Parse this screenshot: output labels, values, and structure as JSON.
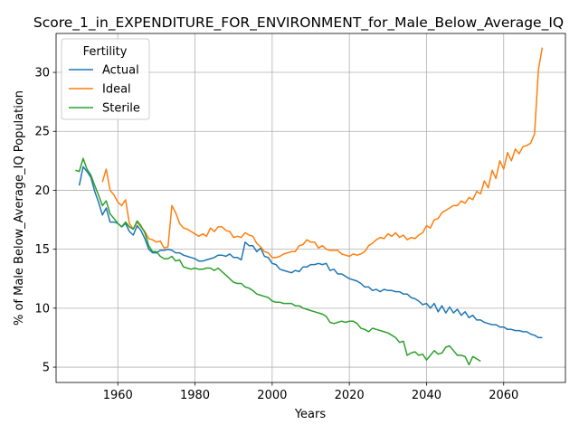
{
  "chart_data": {
    "type": "line",
    "title": "Score_1_in_EXPENDITURE_FOR_ENVIRONMENT_for_Male_Below_Average_IQ",
    "xlabel": "Years",
    "ylabel": "% of Male Below_Average_IQ Population",
    "xlim": [
      1944,
      2076
    ],
    "ylim": [
      3.7,
      33.3
    ],
    "xticks": [
      1960,
      1980,
      2000,
      2020,
      2040,
      2060
    ],
    "yticks": [
      5,
      10,
      15,
      20,
      25,
      30
    ],
    "grid": true,
    "legend": {
      "title": "Fertility",
      "placement": "top-left"
    },
    "series": [
      {
        "name": "Actual",
        "color": "#1f77b4",
        "x": [
          1950,
          1951,
          1952,
          1953,
          1954,
          1955,
          1956,
          1957,
          1958,
          1959,
          1960,
          1961,
          1962,
          1963,
          1964,
          1965,
          1966,
          1967,
          1968,
          1969,
          1970,
          1971,
          1972,
          1973,
          1974,
          1975,
          1976,
          1977,
          1978,
          1979,
          1980,
          1981,
          1982,
          1983,
          1984,
          1985,
          1986,
          1987,
          1988,
          1989,
          1990,
          1991,
          1992,
          1993,
          1994,
          1995,
          1996,
          1997,
          1998,
          1999,
          2000,
          2001,
          2002,
          2003,
          2004,
          2005,
          2006,
          2007,
          2008,
          2009,
          2010,
          2011,
          2012,
          2013,
          2014,
          2015,
          2016,
          2017,
          2018,
          2019,
          2020,
          2021,
          2022,
          2023,
          2024,
          2025,
          2026,
          2027,
          2028,
          2029,
          2030,
          2031,
          2032,
          2033,
          2034,
          2035,
          2036,
          2037,
          2038,
          2039,
          2040,
          2041,
          2042,
          2043,
          2044,
          2045,
          2046,
          2047,
          2048,
          2049,
          2050,
          2051,
          2052,
          2053,
          2054,
          2055,
          2056,
          2057,
          2058,
          2059,
          2060,
          2061,
          2062,
          2063,
          2064,
          2065,
          2066,
          2067,
          2068,
          2069,
          2070
        ],
        "values": [
          20.4,
          22.0,
          21.6,
          21.1,
          19.9,
          19.0,
          17.9,
          18.5,
          17.3,
          17.3,
          17.2,
          16.9,
          17.2,
          16.5,
          16.2,
          17.0,
          16.6,
          15.9,
          15.0,
          14.7,
          14.7,
          14.9,
          14.9,
          15.0,
          14.9,
          14.7,
          14.7,
          14.5,
          14.4,
          14.3,
          14.2,
          14.0,
          14.0,
          14.1,
          14.2,
          14.3,
          14.5,
          14.5,
          14.4,
          14.6,
          14.3,
          14.3,
          14.1,
          15.6,
          15.3,
          15.3,
          14.8,
          15.1,
          14.4,
          14.3,
          13.8,
          13.7,
          13.3,
          13.2,
          13.1,
          13.0,
          13.2,
          13.1,
          13.5,
          13.5,
          13.7,
          13.7,
          13.8,
          13.7,
          13.8,
          13.2,
          13.3,
          12.9,
          12.9,
          12.7,
          12.5,
          12.4,
          12.3,
          12.1,
          11.8,
          11.8,
          11.5,
          11.6,
          11.4,
          11.6,
          11.5,
          11.5,
          11.4,
          11.4,
          11.2,
          11.2,
          10.9,
          10.8,
          10.6,
          10.3,
          10.4,
          10.0,
          10.4,
          9.7,
          10.2,
          9.6,
          10.1,
          9.6,
          9.9,
          9.4,
          9.7,
          9.2,
          9.4,
          9.0,
          9.0,
          8.8,
          8.7,
          8.6,
          8.6,
          8.4,
          8.4,
          8.2,
          8.2,
          8.1,
          8.1,
          8.0,
          8.0,
          7.8,
          7.7,
          7.5,
          7.5
        ]
      },
      {
        "name": "Ideal",
        "color": "#ff7f0e",
        "x": [
          1956,
          1957,
          1958,
          1959,
          1960,
          1961,
          1962,
          1963,
          1964,
          1965,
          1966,
          1967,
          1968,
          1969,
          1970,
          1971,
          1972,
          1973,
          1974,
          1975,
          1976,
          1977,
          1978,
          1979,
          1980,
          1981,
          1982,
          1983,
          1984,
          1985,
          1986,
          1987,
          1988,
          1989,
          1990,
          1991,
          1992,
          1993,
          1994,
          1995,
          1996,
          1997,
          1998,
          1999,
          2000,
          2001,
          2002,
          2003,
          2004,
          2005,
          2006,
          2007,
          2008,
          2009,
          2010,
          2011,
          2012,
          2013,
          2014,
          2015,
          2016,
          2017,
          2018,
          2019,
          2020,
          2021,
          2022,
          2023,
          2024,
          2025,
          2026,
          2027,
          2028,
          2029,
          2030,
          2031,
          2032,
          2033,
          2034,
          2035,
          2036,
          2037,
          2038,
          2039,
          2040,
          2041,
          2042,
          2043,
          2044,
          2045,
          2046,
          2047,
          2048,
          2049,
          2050,
          2051,
          2052,
          2053,
          2054,
          2055,
          2056,
          2057,
          2058,
          2059,
          2060,
          2061,
          2062,
          2063,
          2064,
          2065,
          2066,
          2067,
          2068,
          2069,
          2070
        ],
        "values": [
          20.7,
          21.8,
          20.0,
          19.6,
          19.0,
          18.7,
          19.2,
          17.2,
          16.7,
          17.3,
          16.9,
          16.5,
          15.9,
          15.8,
          15.6,
          15.7,
          15.1,
          15.2,
          18.7,
          18.1,
          17.2,
          16.8,
          16.7,
          16.5,
          16.3,
          16.1,
          16.3,
          16.1,
          16.8,
          16.5,
          16.9,
          16.9,
          16.6,
          16.5,
          16.0,
          16.1,
          16.0,
          16.4,
          16.2,
          16.1,
          15.5,
          15.2,
          14.8,
          14.7,
          14.3,
          14.3,
          14.4,
          14.6,
          14.7,
          14.8,
          14.8,
          15.3,
          15.4,
          15.8,
          15.6,
          15.6,
          15.1,
          15.3,
          15.0,
          14.9,
          14.9,
          14.9,
          14.6,
          14.5,
          14.4,
          14.6,
          14.5,
          14.6,
          14.8,
          15.3,
          15.5,
          15.8,
          16.0,
          15.9,
          16.3,
          16.1,
          16.4,
          16.0,
          16.2,
          15.8,
          16.0,
          15.9,
          16.2,
          16.4,
          17.0,
          16.8,
          17.5,
          17.6,
          18.1,
          18.3,
          18.5,
          18.7,
          18.7,
          19.1,
          18.9,
          19.4,
          19.2,
          19.9,
          19.7,
          20.8,
          20.2,
          21.7,
          21.0,
          22.5,
          21.8,
          23.2,
          22.5,
          23.5,
          23.1,
          23.7,
          23.8,
          24.0,
          24.8,
          30.2,
          32.1
        ]
      },
      {
        "name": "Sterile",
        "color": "#2ca02c",
        "x": [
          1949,
          1950,
          1951,
          1952,
          1953,
          1954,
          1955,
          1956,
          1957,
          1958,
          1959,
          1960,
          1961,
          1962,
          1963,
          1964,
          1965,
          1966,
          1967,
          1968,
          1969,
          1970,
          1971,
          1972,
          1973,
          1974,
          1975,
          1976,
          1977,
          1978,
          1979,
          1980,
          1981,
          1982,
          1983,
          1984,
          1985,
          1986,
          1987,
          1988,
          1989,
          1990,
          1991,
          1992,
          1993,
          1994,
          1995,
          1996,
          1997,
          1998,
          1999,
          2000,
          2001,
          2002,
          2003,
          2004,
          2005,
          2006,
          2007,
          2008,
          2009,
          2010,
          2011,
          2012,
          2013,
          2014,
          2015,
          2016,
          2017,
          2018,
          2019,
          2020,
          2021,
          2022,
          2023,
          2024,
          2025,
          2026,
          2027,
          2028,
          2029,
          2030,
          2031,
          2032,
          2033,
          2034,
          2035,
          2036,
          2037,
          2038,
          2039,
          2040,
          2041,
          2042,
          2043,
          2044,
          2045,
          2046,
          2047,
          2048,
          2049,
          2050,
          2051,
          2052,
          2053,
          2054
        ],
        "values": [
          21.7,
          21.6,
          22.7,
          21.8,
          21.3,
          20.4,
          19.6,
          18.7,
          19.1,
          18.0,
          17.6,
          17.2,
          16.9,
          17.3,
          16.9,
          16.7,
          17.4,
          17.0,
          16.4,
          15.3,
          14.8,
          14.8,
          14.4,
          14.2,
          14.2,
          14.4,
          14.0,
          14.1,
          13.5,
          13.4,
          13.3,
          13.4,
          13.3,
          13.3,
          13.4,
          13.4,
          13.2,
          13.4,
          13.1,
          12.8,
          12.5,
          12.2,
          12.1,
          12.1,
          11.8,
          11.7,
          11.5,
          11.2,
          11.1,
          11.0,
          10.9,
          10.6,
          10.5,
          10.5,
          10.4,
          10.4,
          10.4,
          10.2,
          10.2,
          10.0,
          9.9,
          9.8,
          9.7,
          9.6,
          9.5,
          9.3,
          8.8,
          8.7,
          8.8,
          8.9,
          8.8,
          8.9,
          8.9,
          8.7,
          8.3,
          8.2,
          8.0,
          8.3,
          8.2,
          8.1,
          8.0,
          7.9,
          7.7,
          7.5,
          7.1,
          7.2,
          6.0,
          6.2,
          6.3,
          6.0,
          6.1,
          5.6,
          6.0,
          6.4,
          6.1,
          6.2,
          6.7,
          6.8,
          6.4,
          6.0,
          6.0,
          5.9,
          5.2,
          5.9,
          5.7,
          5.5
        ]
      }
    ]
  }
}
